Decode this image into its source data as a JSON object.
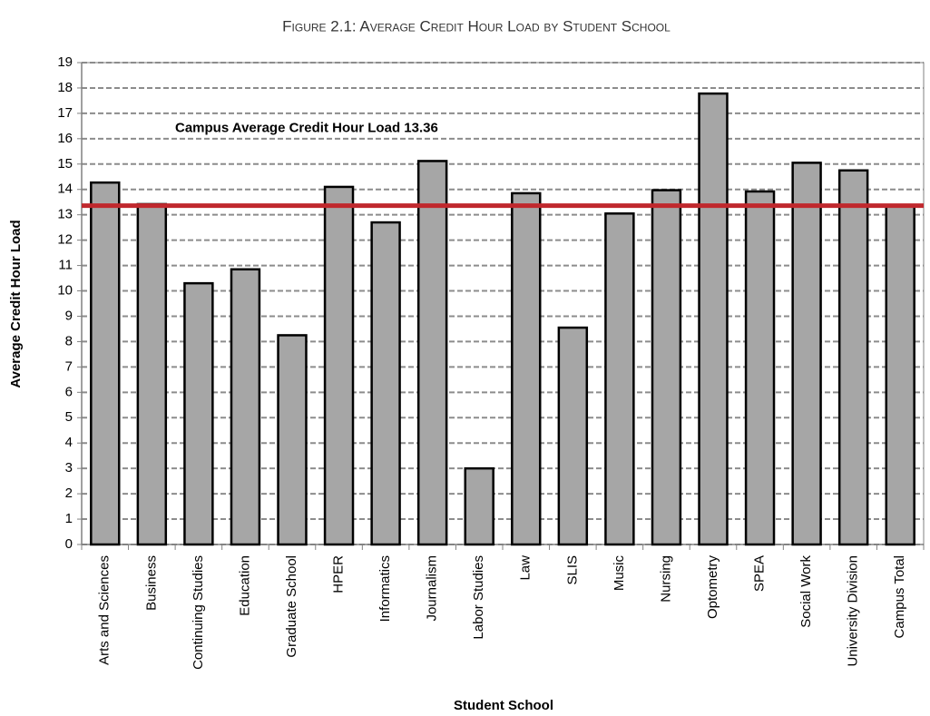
{
  "chart_data": {
    "type": "bar",
    "title": "Figure 2.1: Average Credit Hour Load by Student School",
    "x_label": "Student School",
    "y_label": "Average Credit Hour Load",
    "categories": [
      "Arts and Sciences",
      "Business",
      "Continuing Studies",
      "Education",
      "Graduate School",
      "HPER",
      "Informatics",
      "Journalism",
      "Labor Studies",
      "Law",
      "SLIS",
      "Music",
      "Nursing",
      "Optometry",
      "SPEA",
      "Social Work",
      "University Division",
      "Campus Total"
    ],
    "values": [
      14.27,
      13.42,
      10.3,
      10.85,
      8.25,
      14.1,
      12.7,
      15.12,
      3.0,
      13.85,
      8.55,
      13.05,
      13.97,
      17.78,
      13.92,
      15.05,
      14.75,
      13.36
    ],
    "color": "#a6a6a6",
    "reference_line": {
      "value": 13.36,
      "color": "#c0282d",
      "label": "Campus Average Credit Hour Load 13.36"
    },
    "ylim": [
      0,
      19
    ],
    "yticks": [
      0,
      1,
      2,
      3,
      4,
      5,
      6,
      7,
      8,
      9,
      10,
      11,
      12,
      13,
      14,
      15,
      16,
      17,
      18,
      19
    ],
    "grid": true
  }
}
